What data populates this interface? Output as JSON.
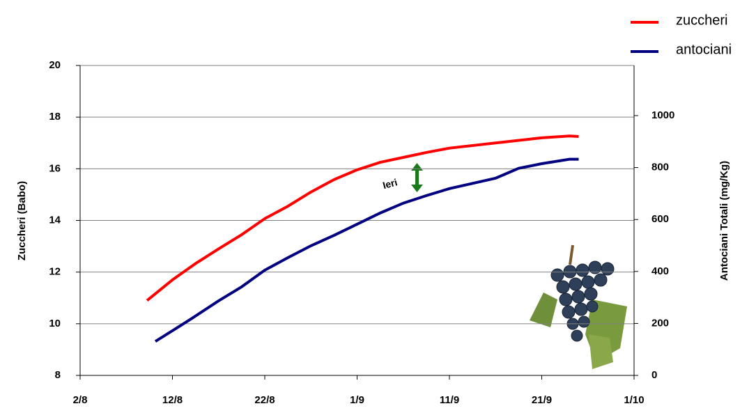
{
  "chart_data": {
    "type": "line",
    "y_label": "Zuccheri (Babo)",
    "y2_label": "Antociani Totali (mg/Kg)",
    "annotation": "Ieri",
    "xlim": [
      0,
      60
    ],
    "xticks": [
      {
        "value": 0,
        "label": "2/8"
      },
      {
        "value": 10,
        "label": "12/8"
      },
      {
        "value": 20,
        "label": "22/8"
      },
      {
        "value": 30,
        "label": "1/9"
      },
      {
        "value": 40,
        "label": "11/9"
      },
      {
        "value": 50,
        "label": "21/9"
      },
      {
        "value": 60,
        "label": "1/10"
      }
    ],
    "ylim": [
      8,
      20
    ],
    "yticks": [
      8,
      10,
      12,
      14,
      16,
      18,
      20
    ],
    "y2lim": [
      0,
      1193
    ],
    "y2ticks": [
      0,
      200,
      400,
      600,
      800,
      1000
    ],
    "grid": true,
    "series": [
      {
        "name": "zuccheri",
        "color": "#ff0000",
        "x": [
          7.25,
          10,
          12.5,
          15,
          17.5,
          20,
          22.5,
          25,
          27.5,
          30,
          32.5,
          35,
          37.5,
          40,
          45,
          50,
          53,
          54
        ],
        "values": [
          10.9,
          11.7,
          12.33,
          12.9,
          13.45,
          14.07,
          14.55,
          15.1,
          15.58,
          15.96,
          16.25,
          16.44,
          16.63,
          16.8,
          17.0,
          17.2,
          17.27,
          17.25
        ]
      },
      {
        "name": "antociani",
        "color": "#000080",
        "axis": "y2",
        "x": [
          8.15,
          10,
          12,
          15,
          17.5,
          20,
          22.5,
          25,
          27.5,
          30,
          32.5,
          35,
          37.5,
          40,
          45,
          47.5,
          50,
          53,
          54
        ],
        "values": [
          131,
          172,
          217,
          287,
          341,
          405,
          453,
          499,
          539,
          582,
          625,
          663,
          692,
          719,
          759,
          797,
          815,
          832,
          832
        ]
      }
    ]
  }
}
